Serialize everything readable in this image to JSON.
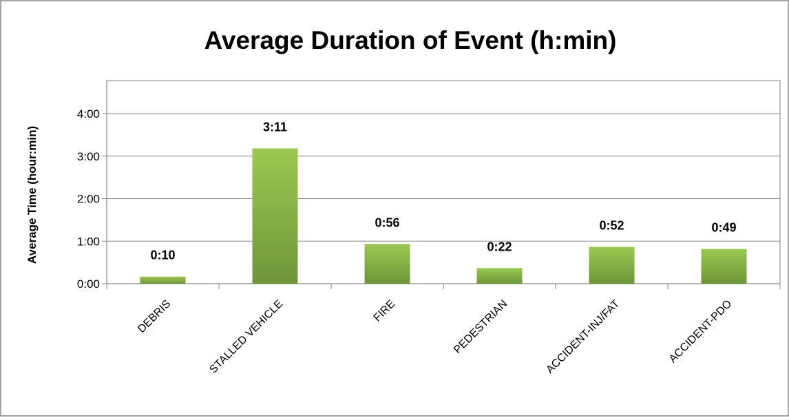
{
  "chart_data": {
    "type": "bar",
    "title": "Average Duration of Event (h:min)",
    "xlabel": "",
    "ylabel": "Average Time (hour:min)",
    "categories": [
      "DEBRIS",
      "STALLED VEHICLE",
      "FIRE",
      "PEDESTRIAN",
      "ACCIDENT-INJ/FAT",
      "ACCIDENT-PDO"
    ],
    "values": [
      10,
      191,
      56,
      22,
      52,
      49
    ],
    "value_unit": "minutes",
    "data_labels": [
      "0:10",
      "3:11",
      "0:56",
      "0:22",
      "0:52",
      "0:49"
    ],
    "yticks": [
      0,
      60,
      120,
      180,
      240
    ],
    "ytick_labels": [
      "0:00",
      "1:00",
      "2:00",
      "3:00",
      "4:00"
    ],
    "ylim": [
      0,
      240
    ],
    "grid": true,
    "legend": "none",
    "colors": {
      "bar_top": "#9BC851",
      "bar_bottom": "#6E9639",
      "grid": "#868686",
      "frame": "#868686"
    }
  }
}
